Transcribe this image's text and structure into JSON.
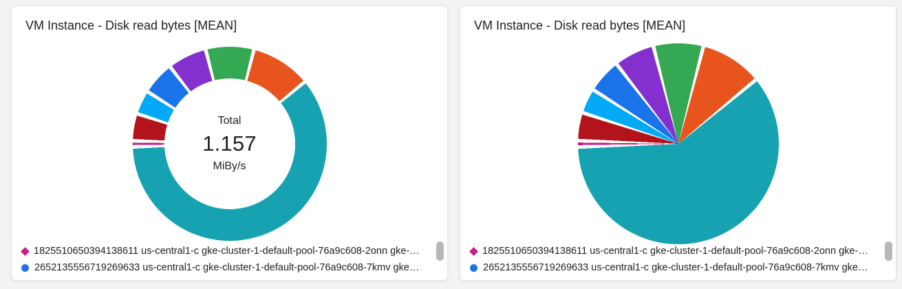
{
  "page": {
    "background": "#f1f3f4"
  },
  "cards": [
    {
      "title": "VM Instance - Disk read bytes [MEAN]"
    },
    {
      "title": "VM Instance - Disk read bytes [MEAN]"
    }
  ],
  "legend": {
    "items": [
      {
        "marker": "diamond",
        "color": "#d01884",
        "label": "1825510650394138611 us-central1-c gke-cluster-1-default-pool-76a9c608-2onn gke-…"
      },
      {
        "marker": "circle",
        "color": "#1a73e8",
        "label": "2652135556719269633 us-central1-c gke-cluster-1-default-pool-76a9c608-7kmv gke…"
      }
    ]
  },
  "chart_data": [
    {
      "type": "pie",
      "variant": "donut",
      "title": "VM Instance - Disk read bytes [MEAN]",
      "center_total": {
        "label": "Total",
        "value": "1.157",
        "unit": "MiBy/s"
      },
      "rotation_deg": -14.4,
      "gap_percent": 0.6,
      "slices": [
        {
          "color": "#34a853",
          "percent": 8
        },
        {
          "color": "#e8541e",
          "percent": 10
        },
        {
          "color": "#17a2b2",
          "percent": 60.5
        },
        {
          "color": "#d01884",
          "percent": 1
        },
        {
          "color": "#b3131b",
          "percent": 4.5
        },
        {
          "color": "#03a9f4",
          "percent": 4
        },
        {
          "color": "#1a73e8",
          "percent": 5.5
        },
        {
          "color": "#8430ce",
          "percent": 6.5
        }
      ],
      "legend_position": "bottom"
    },
    {
      "type": "pie",
      "variant": "pie",
      "title": "VM Instance - Disk read bytes [MEAN]",
      "rotation_deg": -14.4,
      "gap_percent": 0.6,
      "slices": [
        {
          "color": "#34a853",
          "percent": 8
        },
        {
          "color": "#e8541e",
          "percent": 10
        },
        {
          "color": "#17a2b2",
          "percent": 60.5
        },
        {
          "color": "#d01884",
          "percent": 1
        },
        {
          "color": "#b3131b",
          "percent": 4.5
        },
        {
          "color": "#03a9f4",
          "percent": 4
        },
        {
          "color": "#1a73e8",
          "percent": 5.5
        },
        {
          "color": "#8430ce",
          "percent": 6.5
        }
      ],
      "legend_position": "bottom"
    }
  ]
}
